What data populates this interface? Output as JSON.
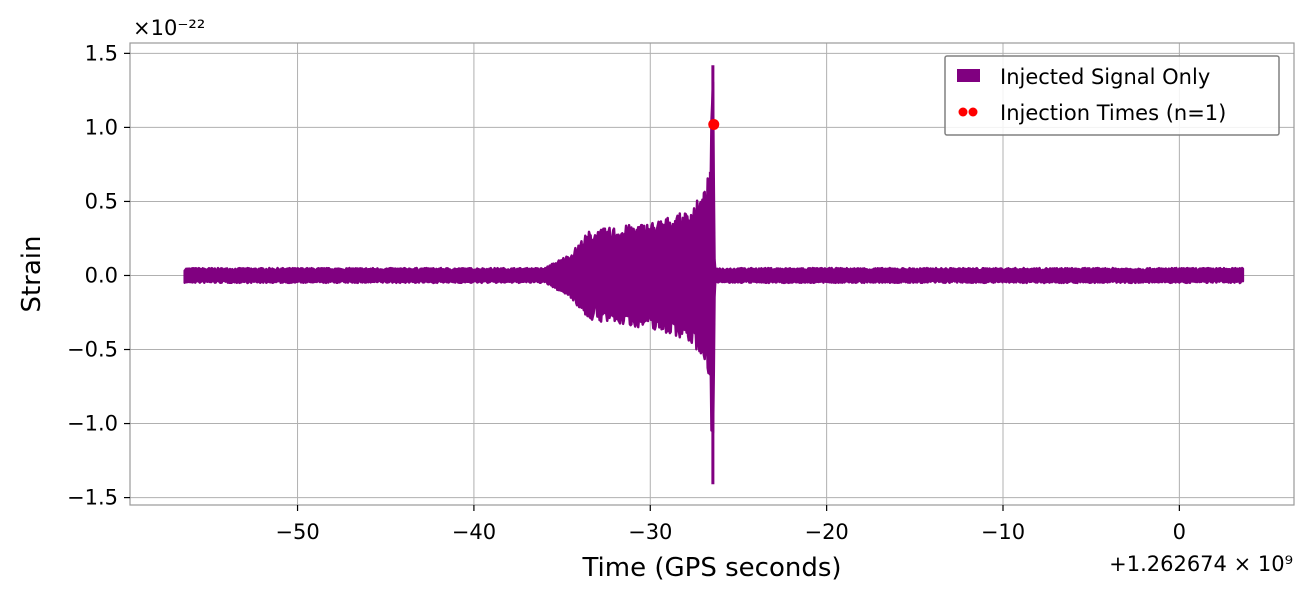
{
  "chart_data": {
    "type": "line",
    "xlabel": "Time (GPS seconds)",
    "ylabel": "Strain",
    "x_offset_label": "+1.262674 × 10⁹",
    "y_scale_label": "×10⁻²²",
    "xlim": [
      -59.5,
      6.5
    ],
    "ylim": [
      -1.55,
      1.57
    ],
    "x_ticks": [
      -50,
      -40,
      -30,
      -20,
      -10,
      0
    ],
    "x_tick_labels": [
      "−50",
      "−40",
      "−30",
      "−20",
      "−10",
      "0"
    ],
    "y_ticks": [
      -1.5,
      -1.0,
      -0.5,
      0.0,
      0.5,
      1.0,
      1.5
    ],
    "y_tick_labels": [
      "−1.5",
      "−1.0",
      "−0.5",
      "0.0",
      "0.5",
      "1.0",
      "1.5"
    ],
    "grid": true,
    "legend_position": "top-right",
    "series": [
      {
        "name": "Injected Signal Only",
        "kind": "strain-envelope",
        "color": "#800080",
        "x_start": -56.4,
        "x_end": 3.6,
        "background_amplitude": 0.05,
        "chirp_points": [
          {
            "x": -36.0,
            "y": 0.05
          },
          {
            "x": -34.5,
            "y": 0.15
          },
          {
            "x": -33.5,
            "y": 0.3
          },
          {
            "x": -32.0,
            "y": 0.33
          },
          {
            "x": -30.0,
            "y": 0.36
          },
          {
            "x": -28.0,
            "y": 0.43
          },
          {
            "x": -27.0,
            "y": 0.55
          },
          {
            "x": -26.6,
            "y": 0.72
          },
          {
            "x": -26.45,
            "y": 1.42
          },
          {
            "x": -26.35,
            "y": 0.05
          }
        ]
      },
      {
        "name": "Injection Times (n=1)",
        "kind": "marker",
        "color": "#ff0000",
        "points": [
          {
            "x": -26.4,
            "y": 1.02
          }
        ]
      }
    ]
  }
}
